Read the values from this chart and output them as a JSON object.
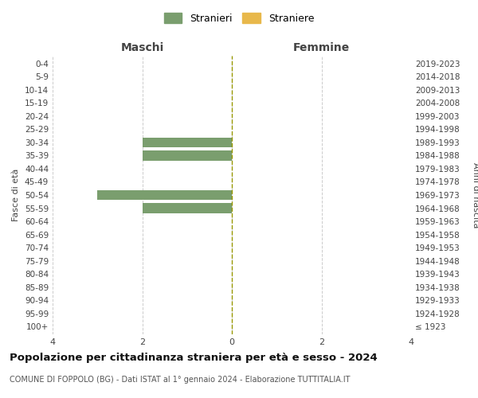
{
  "age_groups": [
    "100+",
    "95-99",
    "90-94",
    "85-89",
    "80-84",
    "75-79",
    "70-74",
    "65-69",
    "60-64",
    "55-59",
    "50-54",
    "45-49",
    "40-44",
    "35-39",
    "30-34",
    "25-29",
    "20-24",
    "15-19",
    "10-14",
    "5-9",
    "0-4"
  ],
  "birth_years": [
    "≤ 1923",
    "1924-1928",
    "1929-1933",
    "1934-1938",
    "1939-1943",
    "1944-1948",
    "1949-1953",
    "1954-1958",
    "1959-1963",
    "1964-1968",
    "1969-1973",
    "1974-1978",
    "1979-1983",
    "1984-1988",
    "1989-1993",
    "1994-1998",
    "1999-2003",
    "2004-2008",
    "2009-2013",
    "2014-2018",
    "2019-2023"
  ],
  "maschi_stranieri": [
    0,
    0,
    0,
    0,
    0,
    0,
    0,
    0,
    0,
    2,
    3,
    0,
    0,
    2,
    2,
    0,
    0,
    0,
    0,
    0,
    0
  ],
  "maschi_straniere": [
    0,
    0,
    0,
    0,
    0,
    0,
    0,
    0,
    0,
    0,
    0,
    0,
    0,
    0,
    0,
    0,
    0,
    0,
    0,
    0,
    0
  ],
  "femmine_stranieri": [
    0,
    0,
    0,
    0,
    0,
    0,
    0,
    0,
    0,
    0,
    0,
    0,
    0,
    0,
    0,
    0,
    0,
    0,
    0,
    0,
    0
  ],
  "femmine_straniere": [
    0,
    0,
    0,
    0,
    0,
    0,
    0,
    0,
    0,
    0,
    0,
    0,
    0,
    0,
    0,
    0,
    0,
    0,
    0,
    0,
    0
  ],
  "color_stranieri": "#7a9e6e",
  "color_straniere": "#e8b84b",
  "xlim": 4,
  "title": "Popolazione per cittadinanza straniera per età e sesso - 2024",
  "subtitle": "COMUNE DI FOPPOLO (BG) - Dati ISTAT al 1° gennaio 2024 - Elaborazione TUTTITALIA.IT",
  "xlabel_maschi": "Maschi",
  "xlabel_femmine": "Femmine",
  "ylabel_left": "Fasce di età",
  "ylabel_right": "Anni di nascita",
  "legend_stranieri": "Stranieri",
  "legend_straniere": "Straniere",
  "bg_color": "#ffffff",
  "grid_color": "#cccccc",
  "bar_height": 0.75
}
